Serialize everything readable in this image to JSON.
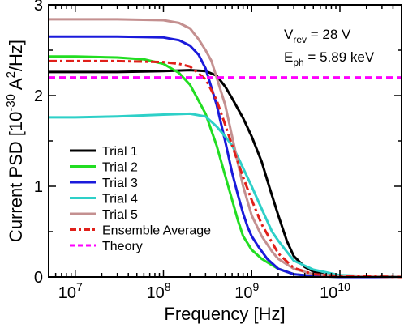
{
  "chart_data": {
    "type": "line",
    "xlabel": "Frequency [Hz]",
    "ylabel": "Current PSD [10",
    "ylabel_exp1": "-30",
    "ylabel_mid": " A",
    "ylabel_exp2": "2",
    "ylabel_tail": "/Hz]",
    "x_scale": "log",
    "xlim": [
      5000000,
      50000000000
    ],
    "ylim": [
      0,
      3
    ],
    "grid": false,
    "legend_position": "bottom-left",
    "x_ticks": [
      {
        "value": 10000000,
        "base": "10",
        "exp": "7"
      },
      {
        "value": 100000000,
        "base": "10",
        "exp": "8"
      },
      {
        "value": 1000000000,
        "base": "10",
        "exp": "9"
      },
      {
        "value": 10000000000,
        "base": "10",
        "exp": "10"
      }
    ],
    "y_ticks": [
      {
        "value": 0,
        "label": "0"
      },
      {
        "value": 1,
        "label": "1"
      },
      {
        "value": 2,
        "label": "2"
      },
      {
        "value": 3,
        "label": "3"
      }
    ],
    "annotations": {
      "vrev": {
        "base": "V",
        "sub": "rev",
        "rest": " = 28 V"
      },
      "eph": {
        "base": "E",
        "sub": "ph",
        "rest": " = 5.89 keV"
      }
    },
    "series": [
      {
        "name": "Trial 1",
        "color": "#000000",
        "dash": "solid",
        "x": [
          5000000.0,
          10000000.0,
          30000000.0,
          100000000.0,
          200000000.0,
          300000000.0,
          400000000.0,
          500000000.0,
          600000000.0,
          800000000.0,
          1000000000.0,
          1300000000.0,
          1600000000.0,
          2000000000.0,
          2500000000.0,
          3000000000.0,
          4000000000.0,
          5000000000.0,
          7000000000.0,
          10000000000.0,
          20000000000.0,
          50000000000.0
        ],
        "y": [
          2.26,
          2.26,
          2.26,
          2.27,
          2.28,
          2.27,
          2.22,
          2.1,
          1.97,
          1.75,
          1.55,
          1.27,
          0.98,
          0.68,
          0.4,
          0.23,
          0.11,
          0.06,
          0.02,
          0.01,
          0.0,
          0.0
        ]
      },
      {
        "name": "Trial 2",
        "color": "#22dd22",
        "dash": "solid",
        "x": [
          5000000.0,
          10000000.0,
          30000000.0,
          60000000.0,
          100000000.0,
          150000000.0,
          200000000.0,
          300000000.0,
          400000000.0,
          500000000.0,
          600000000.0,
          700000000.0,
          800000000.0,
          1000000000.0,
          1300000000.0,
          1700000000.0,
          2000000000.0,
          3000000000.0,
          5000000000.0,
          10000000000.0,
          50000000000.0
        ],
        "y": [
          2.43,
          2.43,
          2.42,
          2.4,
          2.35,
          2.25,
          2.12,
          1.8,
          1.45,
          1.12,
          0.85,
          0.62,
          0.45,
          0.3,
          0.2,
          0.13,
          0.09,
          0.03,
          0.01,
          0.0,
          0.0
        ]
      },
      {
        "name": "Trial 3",
        "color": "#1a1adb",
        "dash": "solid",
        "x": [
          5000000.0,
          10000000.0,
          30000000.0,
          100000000.0,
          150000000.0,
          200000000.0,
          250000000.0,
          300000000.0,
          400000000.0,
          500000000.0,
          600000000.0,
          700000000.0,
          800000000.0,
          900000000.0,
          1000000000.0,
          1200000000.0,
          1500000000.0,
          2000000000.0,
          3000000000.0,
          5000000000.0,
          10000000000.0,
          50000000000.0
        ],
        "y": [
          2.65,
          2.65,
          2.65,
          2.64,
          2.61,
          2.55,
          2.45,
          2.3,
          1.9,
          1.5,
          1.15,
          0.9,
          0.7,
          0.55,
          0.45,
          0.33,
          0.2,
          0.09,
          0.03,
          0.01,
          0.0,
          0.0
        ]
      },
      {
        "name": "Trial 4",
        "color": "#2ed0c8",
        "dash": "solid",
        "x": [
          5000000.0,
          10000000.0,
          30000000.0,
          100000000.0,
          200000000.0,
          300000000.0,
          400000000.0,
          500000000.0,
          600000000.0,
          700000000.0,
          800000000.0,
          1000000000.0,
          1300000000.0,
          1700000000.0,
          2000000000.0,
          3000000000.0,
          5000000000.0,
          10000000000.0,
          20000000000.0,
          50000000000.0
        ],
        "y": [
          1.76,
          1.76,
          1.77,
          1.79,
          1.8,
          1.77,
          1.66,
          1.55,
          1.45,
          1.32,
          1.2,
          1.0,
          0.75,
          0.5,
          0.4,
          0.18,
          0.08,
          0.02,
          0.01,
          0.0
        ]
      },
      {
        "name": "Trial 5",
        "color": "#c49090",
        "dash": "solid",
        "x": [
          5000000.0,
          10000000.0,
          30000000.0,
          100000000.0,
          150000000.0,
          200000000.0,
          250000000.0,
          300000000.0,
          350000000.0,
          400000000.0,
          500000000.0,
          600000000.0,
          700000000.0,
          800000000.0,
          1000000000.0,
          1300000000.0,
          1700000000.0,
          2000000000.0,
          3000000000.0,
          5000000000.0,
          10000000000.0,
          50000000000.0
        ],
        "y": [
          2.84,
          2.84,
          2.84,
          2.83,
          2.8,
          2.74,
          2.62,
          2.5,
          2.38,
          2.2,
          1.9,
          1.55,
          1.25,
          1.0,
          0.68,
          0.45,
          0.28,
          0.2,
          0.09,
          0.03,
          0.01,
          0.0
        ]
      },
      {
        "name": "Ensemble Average",
        "color": "#e0201a",
        "dash": "dashdot",
        "x": [
          5000000.0,
          10000000.0,
          30000000.0,
          100000000.0,
          150000000.0,
          200000000.0,
          300000000.0,
          400000000.0,
          500000000.0,
          600000000.0,
          800000000.0,
          1000000000.0,
          1300000000.0,
          1700000000.0,
          2000000000.0,
          3000000000.0,
          5000000000.0,
          10000000000.0,
          50000000000.0
        ],
        "y": [
          2.38,
          2.38,
          2.38,
          2.37,
          2.35,
          2.32,
          2.18,
          1.95,
          1.68,
          1.45,
          1.1,
          0.85,
          0.58,
          0.38,
          0.26,
          0.1,
          0.03,
          0.01,
          0.0
        ]
      },
      {
        "name": "Theory",
        "color": "#ff00ff",
        "dash": "dash",
        "x": [
          5000000.0,
          50000000000.0
        ],
        "y": [
          2.2,
          2.2
        ]
      }
    ]
  }
}
